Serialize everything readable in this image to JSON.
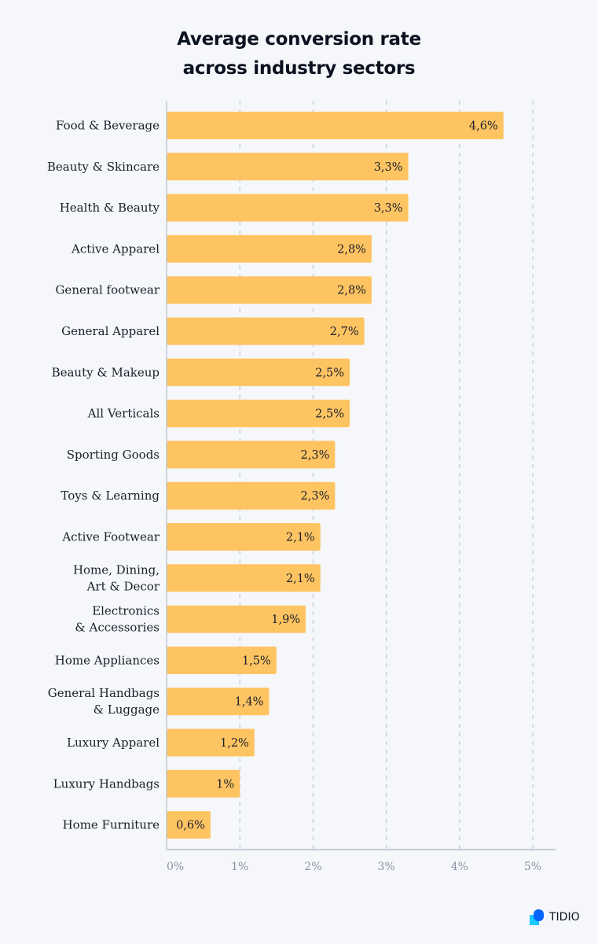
{
  "chart_data": {
    "type": "bar",
    "orientation": "horizontal",
    "title": "Average conversion rate\nacross industry sectors",
    "categories": [
      "Food & Beverage",
      "Beauty & Skincare",
      "Health & Beauty",
      "Active Apparel",
      "General footwear",
      "General Apparel",
      "Beauty & Makeup",
      "All Verticals",
      "Sporting Goods",
      "Toys & Learning",
      "Active Footwear",
      "Home, Dining,\nArt & Decor",
      "Electronics\n& Accessories",
      "Home Appliances",
      "General Handbags\n& Luggage",
      "Luxury Apparel",
      "Luxury Handbags",
      "Home Furniture"
    ],
    "values": [
      4.6,
      3.3,
      3.3,
      2.8,
      2.8,
      2.7,
      2.5,
      2.5,
      2.3,
      2.3,
      2.1,
      2.1,
      1.9,
      1.5,
      1.4,
      1.2,
      1.0,
      0.6
    ],
    "data_labels": [
      "4,6%",
      "3,3%",
      "3,3%",
      "2,8%",
      "2,8%",
      "2,7%",
      "2,5%",
      "2,5%",
      "2,3%",
      "2,3%",
      "2,1%",
      "2,1%",
      "1,9%",
      "1,5%",
      "1,4%",
      "1,2%",
      "1%",
      "0,6%"
    ],
    "xlim": [
      0,
      5
    ],
    "xticks": [
      "0%",
      "1%",
      "2%",
      "3%",
      "4%",
      "5%"
    ],
    "grid": "vertical dashed",
    "xlabel": "",
    "ylabel": "",
    "colors": {
      "bar": "#ffc462",
      "grid": "#b6bfce",
      "axis": "#b6bfce",
      "tick": "#8a93a6",
      "background": "#f5f7fa"
    }
  },
  "logo": {
    "text": "TIDIO",
    "colors": [
      "#0566ff",
      "#1cc9ff"
    ]
  }
}
